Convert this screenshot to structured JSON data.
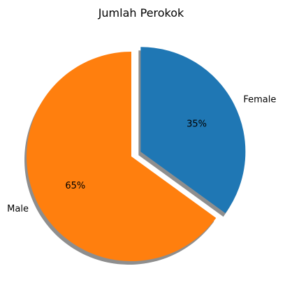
{
  "chart_data": {
    "type": "pie",
    "title": "Jumlah Perokok",
    "slices": [
      {
        "label": "Female",
        "value": 35,
        "percent_label": "35%",
        "color": "#1f77b4",
        "explode": true
      },
      {
        "label": "Male",
        "value": 65,
        "percent_label": "65%",
        "color": "#ff7f0e",
        "explode": false
      }
    ],
    "start_angle_deg": 90,
    "direction": "clockwise",
    "shadow": true,
    "shadow_color": "#7a7a7a"
  }
}
